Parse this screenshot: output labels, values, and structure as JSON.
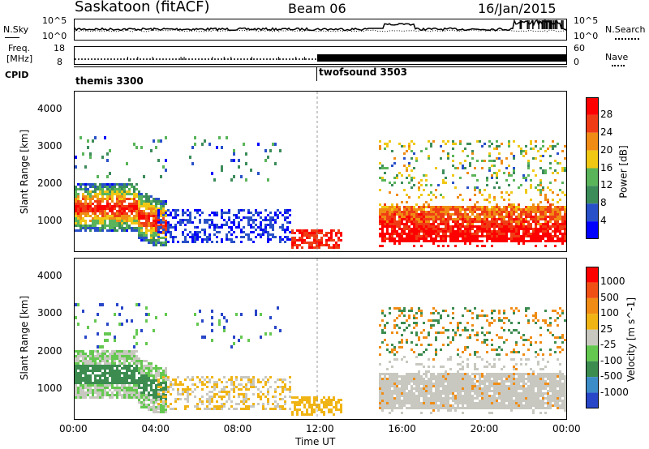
{
  "header": {
    "title": "Saskatoon (fitACF)",
    "beam": "Beam 06",
    "date": "16/Jan/2015"
  },
  "noise_panel": {
    "left_label": "N.Sky",
    "right_label": "N.Search",
    "ticks_left": [
      "10^5",
      "10^0"
    ],
    "ticks_right": [
      "10^5",
      "10^0"
    ]
  },
  "freq_panel": {
    "left_label_1": "Freq.",
    "left_label_2": "[MHz]",
    "right_label": "Nave",
    "ticks_left": [
      "18",
      "8"
    ],
    "ticks_right": [
      "60",
      "0"
    ]
  },
  "cpid": {
    "label": "CPID",
    "modes": [
      "themis 3300",
      "twofsound 3503"
    ]
  },
  "chart_data": [
    {
      "type": "heatmap",
      "name": "power",
      "ylabel": "Slant Range [km]",
      "y_ticks": [
        1000,
        2000,
        3000,
        4000
      ],
      "ylim": [
        180,
        4500
      ],
      "colorbar_label": "Power [dB]",
      "colorbar_ticks": [
        "28",
        "24",
        "20",
        "16",
        "12",
        "8",
        "4"
      ],
      "colors": [
        "#0000ff",
        "#2850c8",
        "#3c8c5a",
        "#5ab45a",
        "#f0c814",
        "#f08c14",
        "#f03c14",
        "#ff0000"
      ]
    },
    {
      "type": "heatmap",
      "name": "velocity",
      "ylabel": "Slant Range [km]",
      "y_ticks": [
        1000,
        2000,
        3000,
        4000
      ],
      "ylim": [
        180,
        4500
      ],
      "colorbar_label": "Velocity [m s^-1]",
      "colorbar_ticks": [
        "1000",
        "500",
        "100",
        "25",
        "-25",
        "-100",
        "-500",
        "-1000"
      ],
      "colors": [
        "#2846c8",
        "#3c8cc8",
        "#3c8c50",
        "#64c850",
        "#c8c8c0",
        "#f0b414",
        "#f08c14",
        "#f05014",
        "#ff0000"
      ]
    }
  ],
  "x_axis": {
    "label": "Time UT",
    "ticks": [
      "00:00",
      "04:00",
      "08:00",
      "12:00",
      "16:00",
      "20:00",
      "00:00"
    ]
  }
}
